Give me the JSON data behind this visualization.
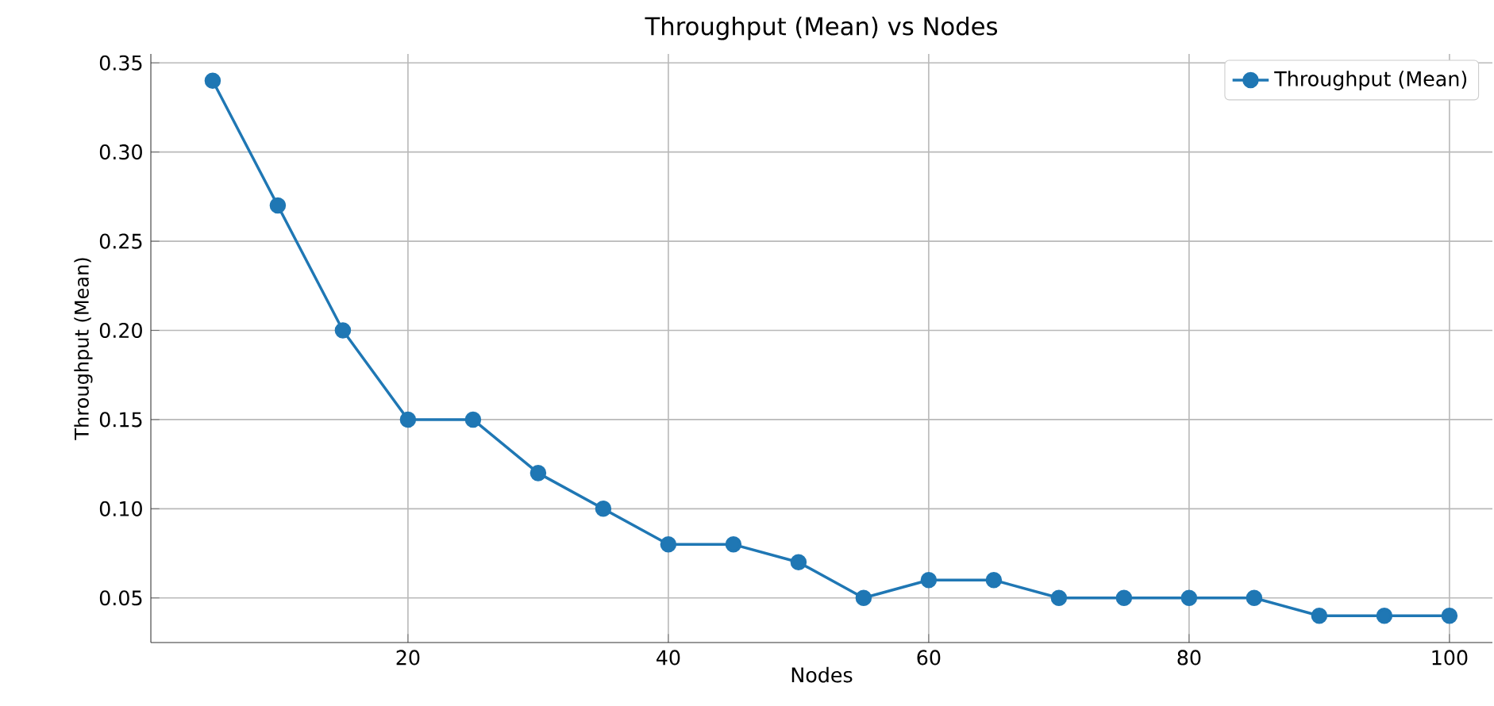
{
  "chart_data": {
    "type": "line",
    "title": "Throughput (Mean) vs Nodes",
    "xlabel": "Nodes",
    "ylabel": "Throughput (Mean)",
    "x": [
      5,
      10,
      15,
      20,
      25,
      30,
      35,
      40,
      45,
      50,
      55,
      60,
      65,
      70,
      75,
      80,
      85,
      90,
      95,
      100
    ],
    "series": [
      {
        "name": "Throughput (Mean)",
        "color": "#1f77b4",
        "values": [
          0.34,
          0.27,
          0.2,
          0.15,
          0.15,
          0.12,
          0.1,
          0.08,
          0.08,
          0.07,
          0.05,
          0.06,
          0.06,
          0.05,
          0.05,
          0.05,
          0.05,
          0.04,
          0.04,
          0.04
        ]
      }
    ],
    "xlim": [
      0.25,
      103.3
    ],
    "ylim": [
      0.025,
      0.355
    ],
    "xticks": [
      20,
      40,
      60,
      80,
      100
    ],
    "yticks": [
      {
        "value": 0.05,
        "label": "0.05"
      },
      {
        "value": 0.1,
        "label": "0.10"
      },
      {
        "value": 0.15,
        "label": "0.15"
      },
      {
        "value": 0.2,
        "label": "0.20"
      },
      {
        "value": 0.25,
        "label": "0.25"
      },
      {
        "value": 0.3,
        "label": "0.30"
      },
      {
        "value": 0.35,
        "label": "0.35"
      }
    ],
    "grid": true,
    "legend": "top right",
    "marker": "circle",
    "line_style": "solid"
  }
}
